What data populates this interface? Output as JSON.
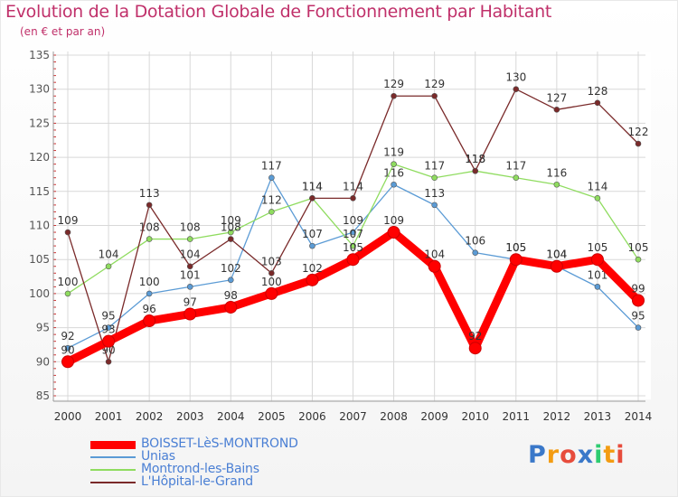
{
  "title": "Evolution de la Dotation Globale de Fonctionnement par Habitant",
  "subtitle": "(en € et par an)",
  "logo": {
    "text": "Proxiti",
    "letter_colors": [
      "#3a78c9",
      "#f39c12",
      "#e74c3c",
      "#3a78c9",
      "#2ecc71",
      "#f39c12",
      "#e74c3c"
    ]
  },
  "chart_data": {
    "type": "line",
    "title": "Evolution de la Dotation Globale de Fonctionnement par Habitant",
    "subtitle": "(en € et par an)",
    "x": [
      "2000",
      "2001",
      "2002",
      "2003",
      "2004",
      "2005",
      "2006",
      "2007",
      "2008",
      "2009",
      "2010",
      "2011",
      "2012",
      "2013",
      "2014"
    ],
    "ylim": [
      85,
      135
    ],
    "yticks": [
      85,
      90,
      95,
      100,
      105,
      110,
      115,
      120,
      125,
      130,
      135
    ],
    "grid": true,
    "legend_position": "bottom-left",
    "series": [
      {
        "name": "BOISSET-LèS-MONTROND",
        "color": "#ff0000",
        "emphasis": true,
        "values": [
          90,
          93,
          96,
          97,
          98,
          100,
          102,
          105,
          109,
          104,
          92,
          105,
          104,
          105,
          99
        ]
      },
      {
        "name": "Unias",
        "color": "#5b9bd5",
        "values": [
          92,
          95,
          100,
          101,
          102,
          117,
          107,
          109,
          116,
          113,
          106,
          105,
          104,
          101,
          95
        ]
      },
      {
        "name": "Montrond-les-Bains",
        "color": "#8fdc5f",
        "values": [
          100,
          104,
          108,
          108,
          109,
          112,
          114,
          107,
          119,
          117,
          118,
          117,
          116,
          114,
          105
        ]
      },
      {
        "name": "L'Hôpital-le-Grand",
        "color": "#7a2a2a",
        "values": [
          109,
          90,
          113,
          104,
          108,
          103,
          114,
          114,
          129,
          129,
          118,
          130,
          127,
          128,
          122
        ]
      }
    ]
  }
}
